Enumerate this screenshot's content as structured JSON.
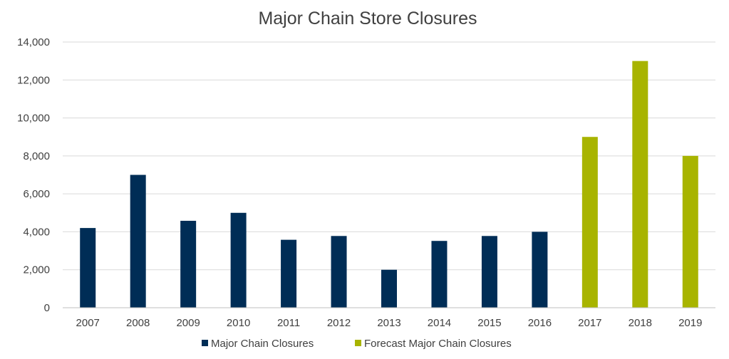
{
  "chart_data": {
    "type": "bar",
    "title": "Major Chain Store Closures",
    "xlabel": "",
    "ylabel": "",
    "categories": [
      "2007",
      "2008",
      "2009",
      "2010",
      "2011",
      "2012",
      "2013",
      "2014",
      "2015",
      "2016",
      "2017",
      "2018",
      "2019"
    ],
    "series": [
      {
        "name": "Major Chain Closures",
        "color": "#002d56",
        "values": [
          4200,
          7000,
          4580,
          5000,
          3580,
          3780,
          2000,
          3520,
          3780,
          4000,
          null,
          null,
          null
        ]
      },
      {
        "name": "Forecast Major Chain Closures",
        "color": "#a8b400",
        "values": [
          null,
          null,
          null,
          null,
          null,
          null,
          null,
          null,
          null,
          null,
          9000,
          13000,
          8000
        ]
      }
    ],
    "ylim": [
      0,
      14000
    ],
    "yticks": [
      0,
      2000,
      4000,
      6000,
      8000,
      10000,
      12000,
      14000
    ],
    "ytick_labels": [
      "0",
      "2,000",
      "4,000",
      "6,000",
      "8,000",
      "10,000",
      "12,000",
      "14,000"
    ],
    "grid": true,
    "legend": "bottom"
  }
}
